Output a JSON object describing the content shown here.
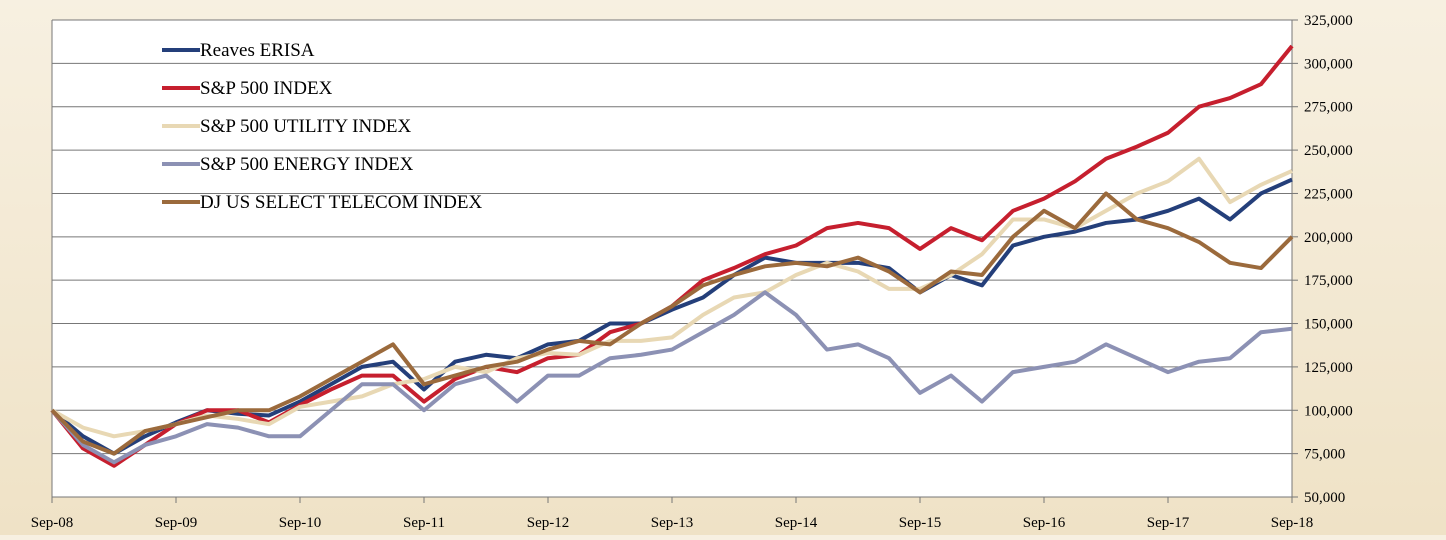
{
  "chart_data": {
    "type": "line",
    "x": [
      "Sep-08",
      "Dec-08",
      "Mar-09",
      "Jun-09",
      "Sep-09",
      "Dec-09",
      "Mar-10",
      "Jun-10",
      "Sep-10",
      "Dec-10",
      "Mar-11",
      "Jun-11",
      "Sep-11",
      "Dec-11",
      "Mar-12",
      "Jun-12",
      "Sep-12",
      "Dec-12",
      "Mar-13",
      "Jun-13",
      "Sep-13",
      "Dec-13",
      "Mar-14",
      "Jun-14",
      "Sep-14",
      "Dec-14",
      "Mar-15",
      "Jun-15",
      "Sep-15",
      "Dec-15",
      "Mar-16",
      "Jun-16",
      "Sep-16",
      "Dec-16",
      "Mar-17",
      "Jun-17",
      "Sep-17",
      "Dec-17",
      "Mar-18",
      "Jun-18",
      "Sep-18"
    ],
    "xticks": [
      "Sep-08",
      "Sep-09",
      "Sep-10",
      "Sep-11",
      "Sep-12",
      "Sep-13",
      "Sep-14",
      "Sep-15",
      "Sep-16",
      "Sep-17",
      "Sep-18"
    ],
    "series": [
      {
        "name": "Reaves ERISA",
        "color": "#243f7a",
        "values": [
          100000,
          85000,
          75000,
          85000,
          93000,
          100000,
          98000,
          97000,
          105000,
          115000,
          125000,
          128000,
          112000,
          128000,
          132000,
          130000,
          138000,
          140000,
          150000,
          150000,
          158000,
          165000,
          178000,
          188000,
          185000,
          185000,
          185000,
          182000,
          168000,
          178000,
          172000,
          195000,
          200000,
          203000,
          208000,
          210000,
          215000,
          222000,
          210000,
          225000,
          233000
        ]
      },
      {
        "name": "S&P 500 INDEX",
        "color": "#c61f2e",
        "values": [
          100000,
          78000,
          68000,
          80000,
          92000,
          100000,
          100000,
          93000,
          103000,
          112000,
          120000,
          120000,
          105000,
          118000,
          125000,
          122000,
          130000,
          132000,
          145000,
          150000,
          160000,
          175000,
          182000,
          190000,
          195000,
          205000,
          208000,
          205000,
          193000,
          205000,
          198000,
          215000,
          222000,
          232000,
          245000,
          252000,
          260000,
          275000,
          280000,
          288000,
          310000
        ]
      },
      {
        "name": "S&P 500 UTILITY INDEX",
        "color": "#e8d8b4",
        "values": [
          100000,
          90000,
          85000,
          88000,
          92000,
          97000,
          95000,
          92000,
          102000,
          105000,
          108000,
          115000,
          118000,
          125000,
          122000,
          130000,
          133000,
          132000,
          140000,
          140000,
          142000,
          155000,
          165000,
          168000,
          178000,
          185000,
          180000,
          170000,
          170000,
          178000,
          190000,
          210000,
          210000,
          205000,
          215000,
          225000,
          232000,
          245000,
          220000,
          230000,
          238000
        ]
      },
      {
        "name": "S&P 500 ENERGY INDEX",
        "color": "#8c91b4",
        "values": [
          100000,
          80000,
          70000,
          80000,
          85000,
          92000,
          90000,
          85000,
          85000,
          100000,
          115000,
          115000,
          100000,
          115000,
          120000,
          105000,
          120000,
          120000,
          130000,
          132000,
          135000,
          145000,
          155000,
          168000,
          155000,
          135000,
          138000,
          130000,
          110000,
          120000,
          105000,
          122000,
          125000,
          128000,
          138000,
          130000,
          122000,
          128000,
          130000,
          145000,
          147000
        ]
      },
      {
        "name": "DJ US SELECT TELECOM INDEX",
        "color": "#9b6a3c",
        "values": [
          100000,
          82000,
          75000,
          88000,
          92000,
          96000,
          100000,
          100000,
          108000,
          118000,
          128000,
          138000,
          115000,
          120000,
          125000,
          128000,
          135000,
          140000,
          138000,
          150000,
          160000,
          172000,
          178000,
          183000,
          185000,
          183000,
          188000,
          180000,
          168000,
          180000,
          178000,
          200000,
          215000,
          205000,
          225000,
          210000,
          205000,
          197000,
          185000,
          182000,
          200000
        ]
      }
    ],
    "ylim": [
      50000,
      325000
    ],
    "yticks": [
      {
        "value": 50000,
        "label": "50,000"
      },
      {
        "value": 75000,
        "label": "75,000"
      },
      {
        "value": 100000,
        "label": "100,000"
      },
      {
        "value": 125000,
        "label": "125,000"
      },
      {
        "value": 150000,
        "label": "150,000"
      },
      {
        "value": 175000,
        "label": "175,000"
      },
      {
        "value": 200000,
        "label": "200,000"
      },
      {
        "value": 225000,
        "label": "225,000"
      },
      {
        "value": 250000,
        "label": "250,000"
      },
      {
        "value": 275000,
        "label": "275,000"
      },
      {
        "value": 300000,
        "label": "300,000"
      },
      {
        "value": 325000,
        "label": "325,000"
      }
    ],
    "grid": true,
    "legend": "top-left"
  }
}
